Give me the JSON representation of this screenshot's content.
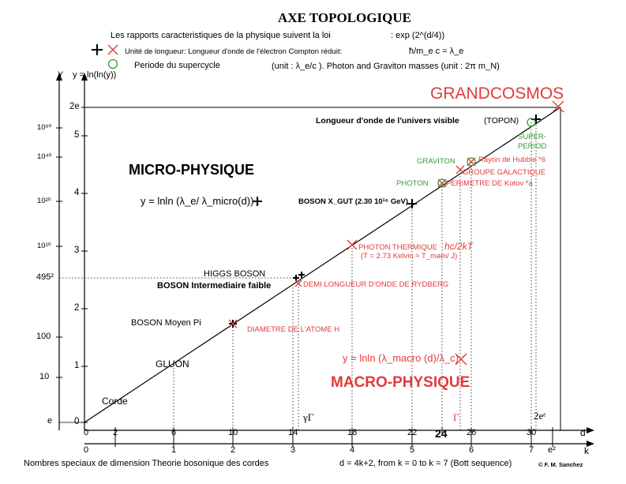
{
  "header": {
    "title": "AXE TOPOLOGIQUE",
    "line1": "Les rapports caracteristiques de la physique suivent la loi",
    "line1_formula": ": exp (2^(d/4))",
    "legend_plus_text": "Unité de longueur: Longueur d'onde de l'électron Compton réduit:",
    "legend_plus_formula": "ħ/m_e c = λ_e",
    "legend_circle_text": "Periode du supercycle",
    "legend_circle_formula": "(unit : λ_e/c ). Photon and Graviton masses (unit : 2π m_N)"
  },
  "y_axis": {
    "label": "Y",
    "function_label": "y = ln(ln(y))",
    "y_ticks": [
      "0",
      "1",
      "2",
      "3",
      "4",
      "5",
      "2e"
    ],
    "value_ticks": [
      "e",
      "10",
      "100",
      "495²",
      "10¹⁰",
      "10²⁰",
      "10⁴⁰",
      "10⁸⁰"
    ]
  },
  "x_axis": {
    "d_label": "d",
    "k_label": "k",
    "d_ticks": [
      "0",
      "2",
      "6",
      "10",
      "14",
      "18",
      "22",
      "24",
      "26",
      "30"
    ],
    "k_ticks": [
      "0",
      "1",
      "2",
      "3",
      "4",
      "5",
      "6",
      "7",
      "e²"
    ],
    "d_top_labels": [
      "γΓ",
      "Γ",
      "2eᵉ"
    ],
    "footer_left": "Nombres speciaux de dimension Theorie bosonique des cordes",
    "footer_right": "d = 4k+2, from k = 0 to k = 7 (Bott sequence)",
    "copyright": "© F. M. Sanchez"
  },
  "regions": {
    "micro": "MICRO-PHYSIQUE",
    "micro_formula": "y = lnln (λ_e/ λ_micro(d)) :",
    "macro": "MACRO-PHYSIQUE",
    "macro_formula": "y = lnln (λ_macro (d)/λ_c) :",
    "grand": "GRANDCOSMOS"
  },
  "points": {
    "corde": "Corde",
    "gluon": "GLUON",
    "boson_pi": "BOSON Moyen Pi",
    "higgs": "HIGGS BOSON",
    "boson_int": "BOSON Intermediaire faible",
    "boson_x": "BOSON X_GUT (2.30 10¹⁶ GeV)",
    "univers": "Longueur d'onde de l'univers visible",
    "topon": "(TOPON)",
    "atome": "DIAMETRE DE L'ATOME H",
    "rydberg": "DEMI LONGUEUR D'ONDE DE RYDBERG",
    "photon_th": "PHOTON THERMIQUE",
    "photon_th_note": "(T = 2.73  Kelvin ≈ T_mam/ J)",
    "hc2kt": "hc/2kT",
    "kotov": "PERIMETRE DE Kotov *a",
    "groupe": "GROUPE GALACTIQUE",
    "hubble": "Rayon de Hubble *6",
    "photon": "PHOTON",
    "graviton": "GRAVITON",
    "superperiod": "SUPER-PERIOD"
  },
  "colors": {
    "red": "#e23a3a",
    "green": "#3a9a3a",
    "black": "#000000"
  }
}
